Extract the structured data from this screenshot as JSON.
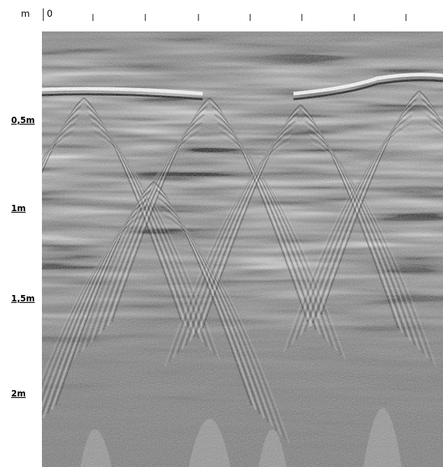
{
  "scale": {
    "unit": "m",
    "origin": "0"
  },
  "depth_labels": [
    "0,5m",
    "1m",
    "1,5m",
    "2m"
  ]
}
